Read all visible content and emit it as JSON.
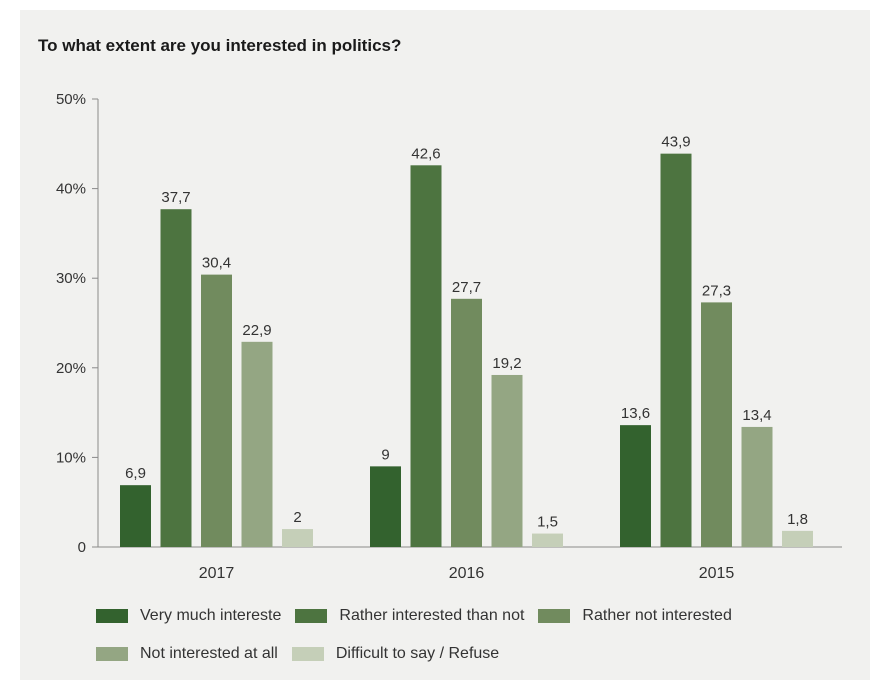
{
  "chart_data": {
    "type": "bar",
    "title": "To what extent are you interested in politics?",
    "categories": [
      "2017",
      "2016",
      "2015"
    ],
    "ylim": [
      0,
      50
    ],
    "yticks": [
      {
        "value": 0,
        "label": "0"
      },
      {
        "value": 10,
        "label": "10%"
      },
      {
        "value": 20,
        "label": "20%"
      },
      {
        "value": 30,
        "label": "30%"
      },
      {
        "value": 40,
        "label": "40%"
      },
      {
        "value": 50,
        "label": "50%"
      }
    ],
    "grid": false,
    "legend_position": "bottom",
    "series": [
      {
        "name": "Very much intereste",
        "color": "#33622e",
        "values": [
          6.9,
          9,
          13.6
        ],
        "labels": [
          "6,9",
          "9",
          "13,6"
        ]
      },
      {
        "name": "Rather interested than not",
        "color": "#4d7440",
        "values": [
          37.7,
          42.6,
          43.9
        ],
        "labels": [
          "37,7",
          "42,6",
          "43,9"
        ]
      },
      {
        "name": "Rather not interested",
        "color": "#718b5e",
        "values": [
          30.4,
          27.7,
          27.3
        ],
        "labels": [
          "30,4",
          "27,7",
          "27,3"
        ]
      },
      {
        "name": "Not interested at all",
        "color": "#94a683",
        "values": [
          22.9,
          19.2,
          13.4
        ],
        "labels": [
          "22,9",
          "19,2",
          "13,4"
        ]
      },
      {
        "name": "Difficult to say / Refuse",
        "color": "#c5cfb8",
        "values": [
          2,
          1.5,
          1.8
        ],
        "labels": [
          "2",
          "1,5",
          "1,8"
        ]
      }
    ]
  }
}
